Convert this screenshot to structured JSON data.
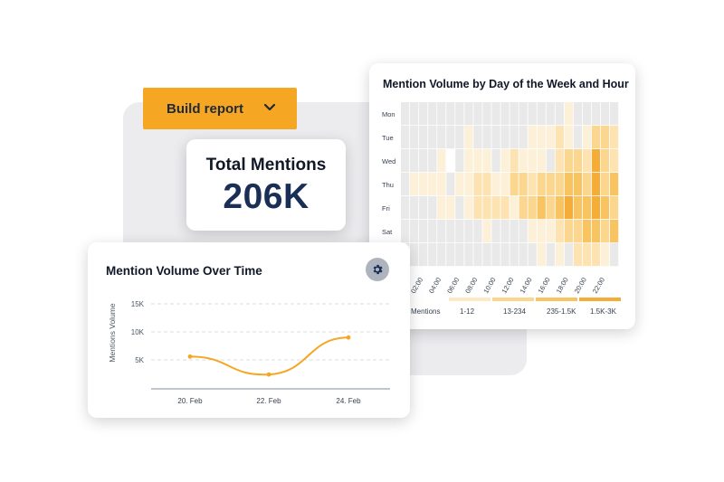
{
  "build_report": {
    "label": "Build report"
  },
  "total_mentions": {
    "title": "Total Mentions",
    "value": "206K"
  },
  "heatmap": {
    "title": "Mention Volume by Day of the Week and Hour",
    "days": [
      "Mon",
      "Tue",
      "Wed",
      "Thu",
      "Fri",
      "Sat"
    ],
    "hours": [
      "02:00",
      "04:00",
      "06:00",
      "08:00",
      "10:00",
      "12:00",
      "14:00",
      "16:00",
      "18:00",
      "20:00",
      "22:00"
    ],
    "legend": {
      "first_label": "Mentions",
      "items": [
        {
          "label": "1-12",
          "color": "#fde9c4"
        },
        {
          "label": "13-234",
          "color": "#fbd68f"
        },
        {
          "label": "235-1.5K",
          "color": "#f8c461"
        },
        {
          "label": "1.5K-3K",
          "color": "#f5ad37"
        }
      ]
    },
    "empty_color": "#e9e9e9",
    "colors": [
      "#e9e9e9",
      "#fdf0d8",
      "#fde3b2",
      "#fbd68f",
      "#f8c461",
      "#f5ad37"
    ],
    "levels": [
      [
        0,
        0,
        0,
        0,
        0,
        0,
        0,
        0,
        0,
        0,
        0,
        0,
        0,
        0,
        0,
        0,
        0,
        0,
        0,
        0,
        0,
        0,
        0,
        0,
        0,
        0,
        0,
        0,
        0,
        0,
        0,
        0,
        0,
        0,
        0,
        0,
        0,
        0,
        0,
        0,
        0,
        0,
        0,
        0
      ],
      [
        0,
        0,
        0,
        0,
        0,
        0,
        0,
        0,
        0,
        0,
        0,
        0,
        0,
        0,
        0,
        0,
        0,
        0,
        0,
        0,
        0,
        0,
        0,
        0,
        0,
        0,
        0,
        0,
        0,
        0,
        0,
        0,
        0,
        0,
        0,
        0,
        0,
        0,
        0,
        0,
        0,
        0,
        0,
        0
      ],
      [
        0,
        0,
        0,
        0,
        0,
        0,
        0,
        0,
        0,
        0,
        0,
        0,
        0,
        0,
        0,
        0,
        0,
        0,
        0,
        0,
        0,
        0,
        0,
        0,
        0,
        0,
        0,
        0,
        0,
        0,
        0,
        0,
        0,
        0,
        0,
        0,
        0,
        0,
        0,
        0,
        0,
        0,
        0,
        0
      ],
      [
        0,
        0,
        0,
        0,
        0,
        0,
        0,
        0,
        0,
        0,
        0,
        0,
        0,
        0,
        0,
        0,
        0,
        0,
        0,
        0,
        0,
        0,
        0,
        0,
        0,
        0,
        0,
        0,
        0,
        0,
        0,
        0,
        0,
        0,
        0,
        0,
        0,
        0,
        0,
        0,
        0,
        0,
        0,
        0
      ],
      [
        0,
        0,
        0,
        0,
        0,
        0,
        0,
        0,
        0,
        0,
        0,
        0,
        0,
        0,
        0,
        0,
        0,
        0,
        0,
        0,
        0,
        0,
        0,
        0,
        0,
        0,
        0,
        0,
        0,
        0,
        0,
        0,
        0,
        0,
        0,
        0,
        0,
        0,
        0,
        0,
        0,
        0,
        0,
        0
      ],
      [
        0,
        0,
        0,
        0,
        0,
        0,
        0,
        0,
        0,
        0,
        0,
        0,
        0,
        0,
        0,
        0,
        0,
        0,
        0,
        0,
        0,
        0,
        0,
        0,
        0,
        0,
        0,
        0,
        0,
        0,
        0,
        0,
        0,
        0,
        0,
        0,
        0,
        0,
        0,
        0,
        0,
        0,
        0,
        0
      ]
    ]
  },
  "line_chart": {
    "title": "Mention Volume Over Time",
    "ylabel": "Mentions Volume",
    "yticks": [
      "5K",
      "10K",
      "15K"
    ],
    "xticks": [
      "20. Feb",
      "22. Feb",
      "24. Feb"
    ],
    "color": "#f5a623"
  },
  "chart_data": [
    {
      "type": "line",
      "title": "Mention Volume Over Time",
      "xlabel": "",
      "ylabel": "Mentions Volume",
      "x": [
        "20. Feb",
        "22. Feb",
        "24. Feb"
      ],
      "series": [
        {
          "values": [
            5600,
            2400,
            9000
          ]
        }
      ],
      "ylim": [
        0,
        15000
      ],
      "grid": true
    },
    {
      "type": "heatmap",
      "title": "Mention Volume by Day of the Week and Hour",
      "y": [
        "Mon",
        "Tue",
        "Wed",
        "Thu",
        "Fri",
        "Sat"
      ],
      "x_tick_labels": [
        "02:00",
        "04:00",
        "06:00",
        "08:00",
        "10:00",
        "12:00",
        "14:00",
        "16:00",
        "18:00",
        "20:00",
        "22:00"
      ],
      "legend": [
        "Mentions",
        "1-12",
        "13-234",
        "235-1.5K",
        "1.5K-3K"
      ]
    }
  ]
}
